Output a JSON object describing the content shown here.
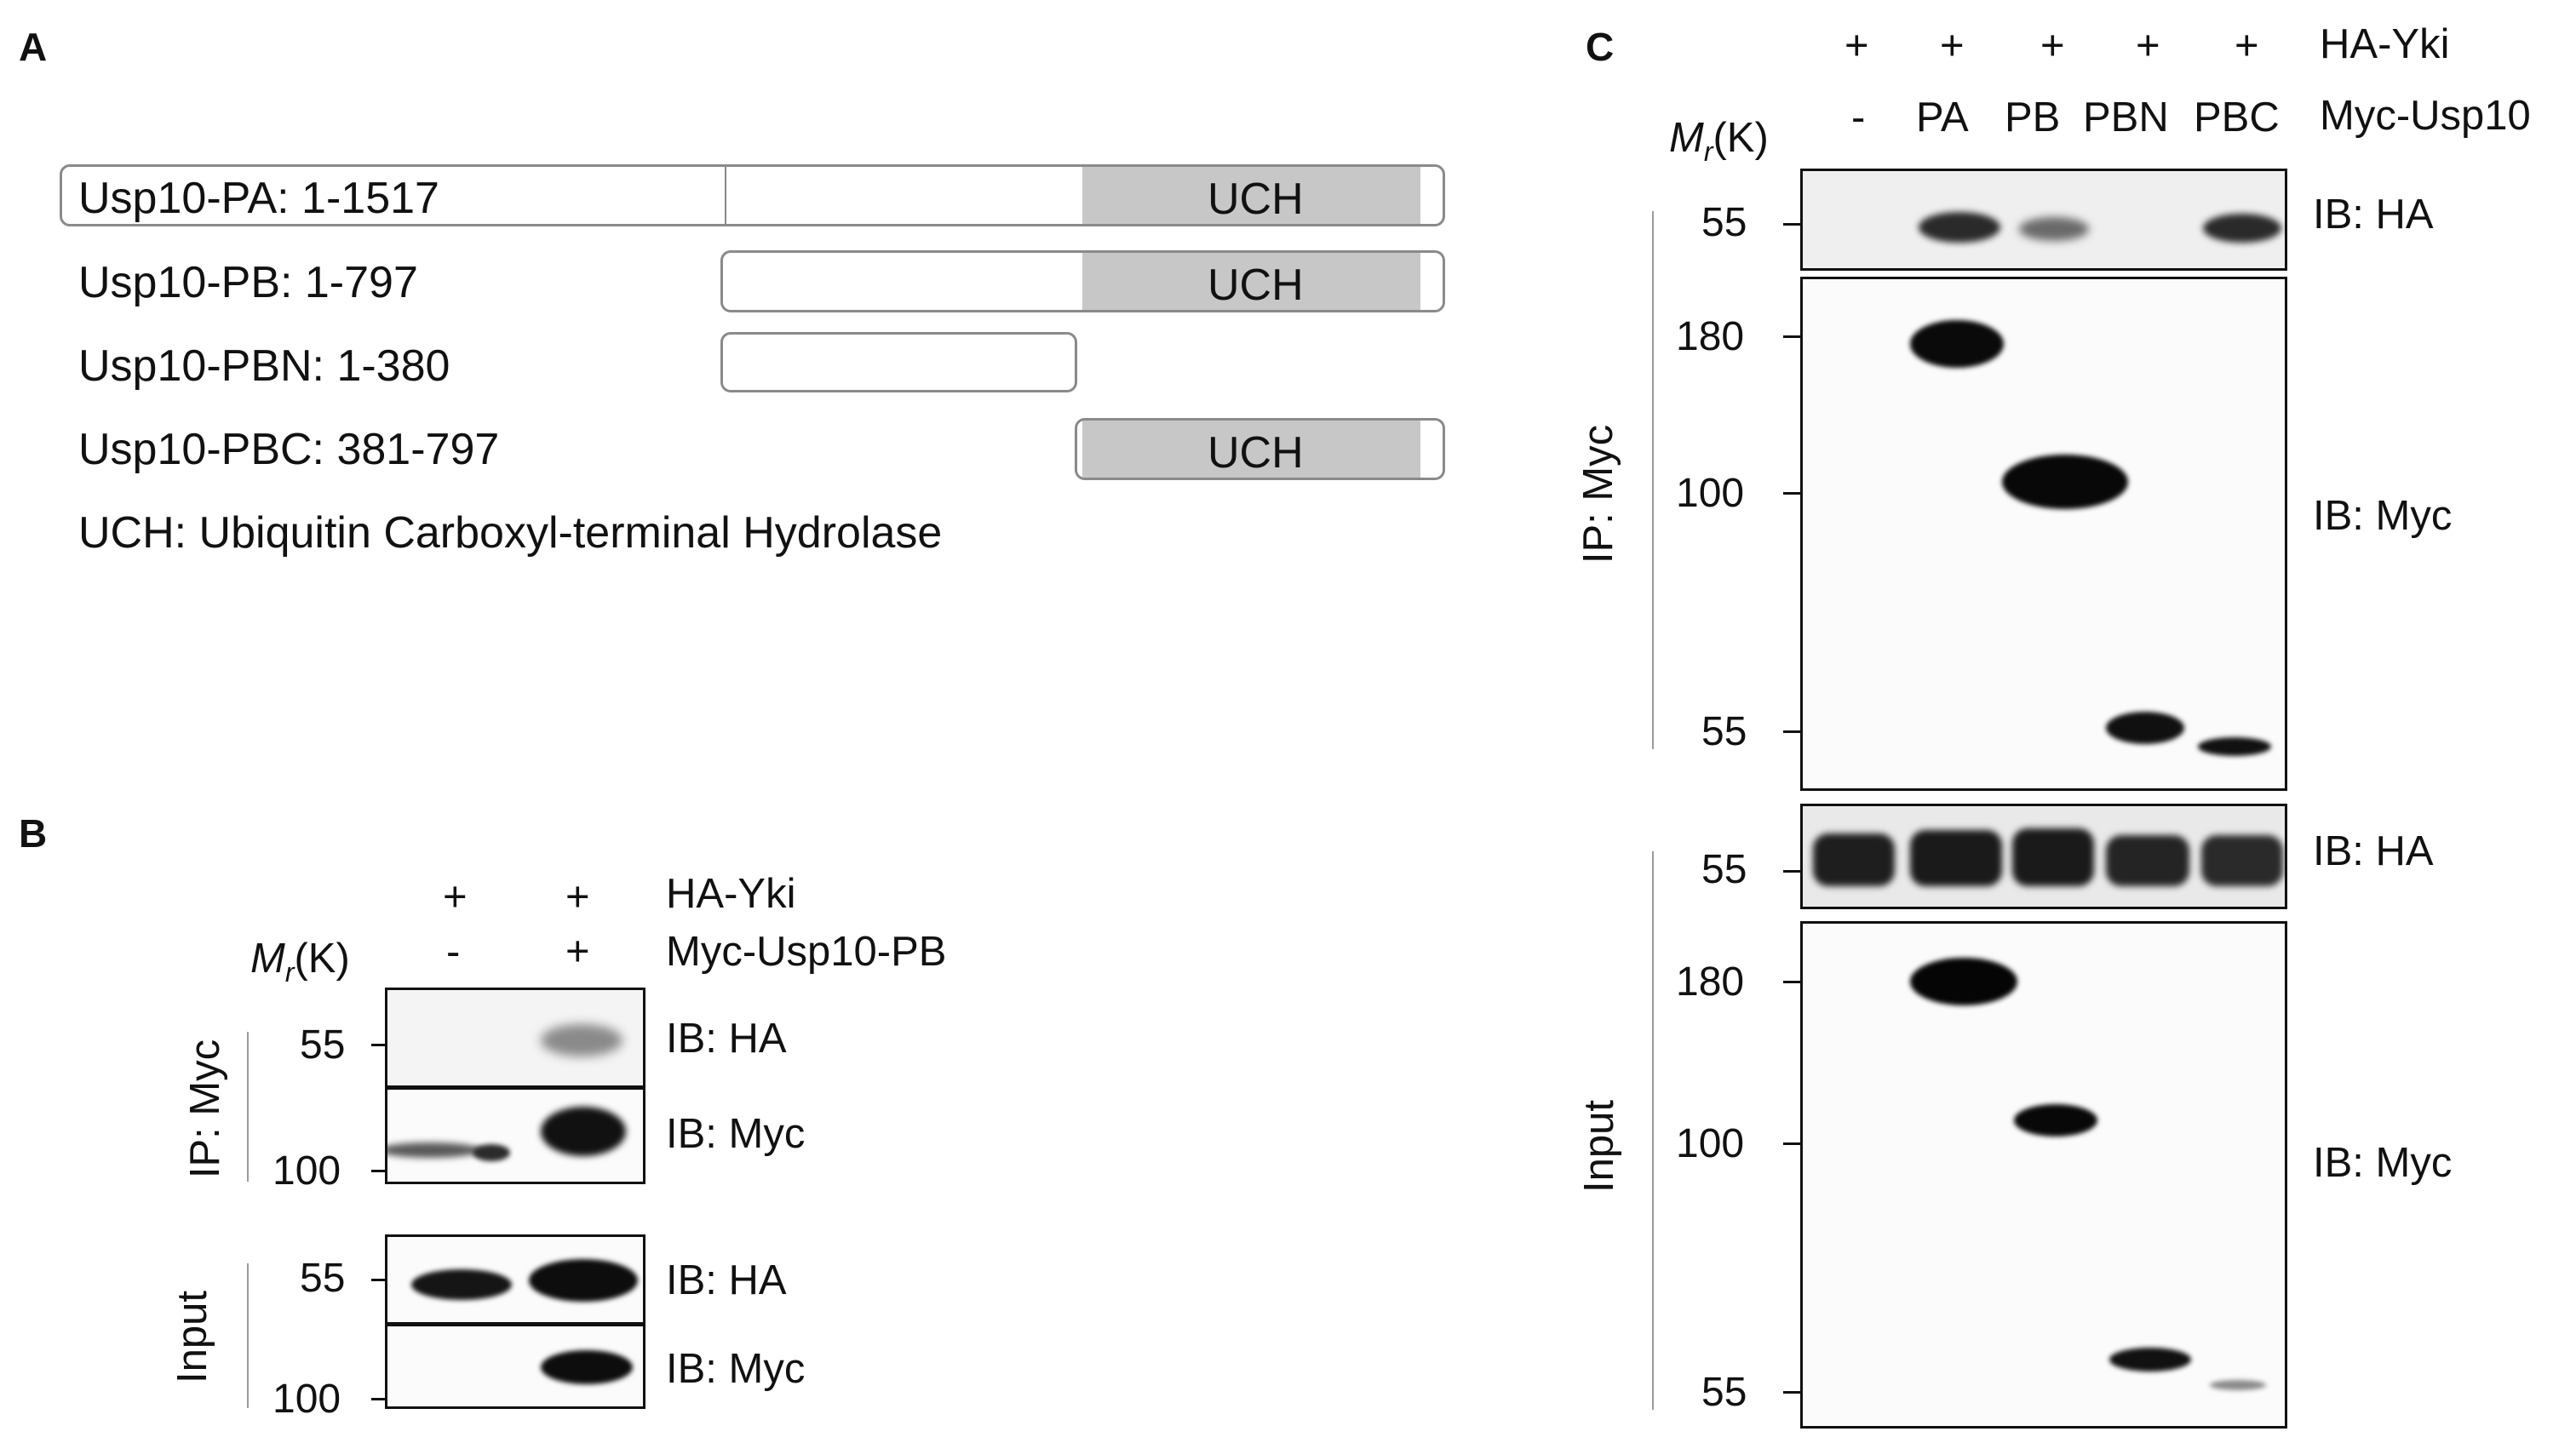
{
  "panels": {
    "a": "A",
    "b": "B",
    "c": "C"
  },
  "panel_a": {
    "constructs": [
      "Usp10-PA: 1-1517",
      "Usp10-PB: 1-797",
      "Usp10-PBN: 1-380",
      "Usp10-PBC: 381-797"
    ],
    "domain_label": "UCH",
    "legend": "UCH: Ubiquitin Carboxyl-terminal Hydrolase",
    "bar_fill_color": "#c7c7c7"
  },
  "panel_b": {
    "row1_label": "HA-Yki",
    "row1_values": [
      "+",
      "+"
    ],
    "row2_label": "Myc-Usp10-PB",
    "row2_values": [
      "-",
      "+"
    ],
    "mr_label_m": "M",
    "mr_label_r": "r",
    "mr_label_unit": "(K)",
    "ip_label": "IP: Myc",
    "input_label": "Input",
    "blots": [
      {
        "tick": "55",
        "ib": "IB: HA"
      },
      {
        "tick": "100",
        "ib": "IB: Myc"
      },
      {
        "tick": "55",
        "ib": "IB: HA"
      },
      {
        "tick": "100",
        "ib": "IB: Myc"
      }
    ]
  },
  "panel_c": {
    "row1_label": "HA-Yki",
    "row1_values": [
      "+",
      "+",
      "+",
      "+",
      "+"
    ],
    "row2_label": "Myc-Usp10",
    "row2_values": [
      "-",
      "PA",
      "PB",
      "PBN",
      "PBC"
    ],
    "mr_label_m": "M",
    "mr_label_r": "r",
    "mr_label_unit": "(K)",
    "ip_label": "IP: Myc",
    "input_label": "Input",
    "ticks": {
      "ip_ha": [
        "55"
      ],
      "ip_myc": [
        "180",
        "100",
        "55"
      ],
      "in_ha": [
        "55"
      ],
      "in_myc": [
        "180",
        "100",
        "55"
      ]
    },
    "ib": {
      "ip_ha": "IB: HA",
      "ip_myc": "IB: Myc",
      "in_ha": "IB: HA",
      "in_myc": "IB: Myc"
    }
  }
}
